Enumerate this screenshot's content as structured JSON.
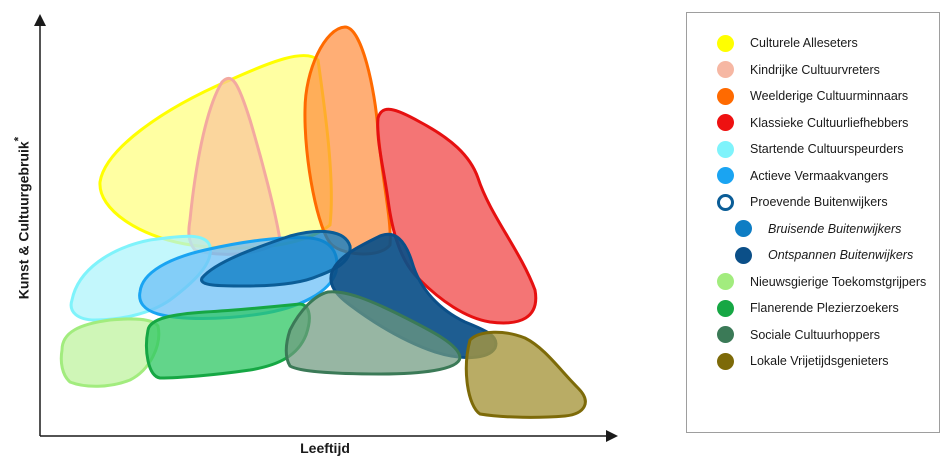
{
  "axes": {
    "y_label": "Kunst & Cultuurgebruik",
    "y_asterisk": "*",
    "x_label": "Leeftijd"
  },
  "legend": [
    {
      "label": "Culturele Alleseters",
      "color": "#ffff00",
      "style": "filled",
      "italic": false,
      "indent": false
    },
    {
      "label": "Kindrijke Cultuurvreters",
      "color": "#f6b7a3",
      "style": "filled",
      "italic": false,
      "indent": false
    },
    {
      "label": "Weelderige Cultuurminnaars",
      "color": "#ff6a00",
      "style": "filled",
      "italic": false,
      "indent": false
    },
    {
      "label": "Klassieke Cultuurliefhebbers",
      "color": "#ee1111",
      "style": "filled",
      "italic": false,
      "indent": false
    },
    {
      "label": "Startende Cultuurspeurders",
      "color": "#7ff3fb",
      "style": "filled",
      "italic": false,
      "indent": false
    },
    {
      "label": "Actieve Vermaakvangers",
      "color": "#1aa4f2",
      "style": "filled",
      "italic": false,
      "indent": false
    },
    {
      "label": "Proevende Buitenwijkers",
      "color": "#0b5d97",
      "style": "outline",
      "italic": false,
      "indent": false
    },
    {
      "label": "Bruisende Buitenwijkers",
      "color": "#0e7dc4",
      "style": "filled",
      "italic": true,
      "indent": true
    },
    {
      "label": "Ontspannen Buitenwijkers",
      "color": "#0b4f88",
      "style": "filled",
      "italic": true,
      "indent": true
    },
    {
      "label": "Nieuwsgierige Toekomstgrijpers",
      "color": "#a2ec7e",
      "style": "filled",
      "italic": false,
      "indent": false
    },
    {
      "label": "Flanerende Plezierzoekers",
      "color": "#16a744",
      "style": "filled",
      "italic": false,
      "indent": false
    },
    {
      "label": "Sociale Cultuurhoppers",
      "color": "#3b7a57",
      "style": "filled",
      "italic": false,
      "indent": false
    },
    {
      "label": "Lokale Vrijetijdsgenieters",
      "color": "#7d6a08",
      "style": "filled",
      "italic": false,
      "indent": false
    }
  ]
}
